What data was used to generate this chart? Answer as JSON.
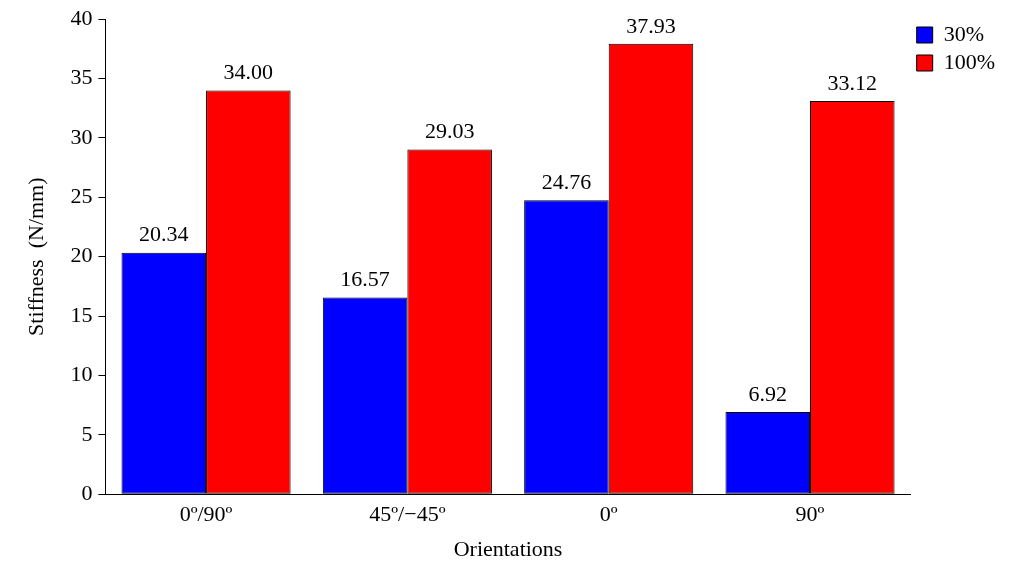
{
  "chart_data": {
    "type": "bar",
    "xlabel": "Orientations",
    "ylabel": "Stiffness  (N/mm)",
    "categories": [
      "0º/90º",
      "45º/−45º",
      "0º",
      "90º"
    ],
    "series": [
      {
        "name": "30%",
        "color": "#0000ff",
        "values": [
          20.34,
          16.57,
          24.76,
          6.92
        ],
        "value_labels": [
          "20.34",
          "16.57",
          "24.76",
          "6.92"
        ]
      },
      {
        "name": "100%",
        "color": "#ff0000",
        "values": [
          34.0,
          29.03,
          37.93,
          33.12
        ],
        "value_labels": [
          "34.00",
          "29.03",
          "37.93",
          "33.12"
        ]
      }
    ],
    "ylim": [
      0,
      40
    ],
    "yticks": [
      0,
      5,
      10,
      15,
      20,
      25,
      30,
      35,
      40
    ],
    "grid": false,
    "legend": "top right"
  }
}
